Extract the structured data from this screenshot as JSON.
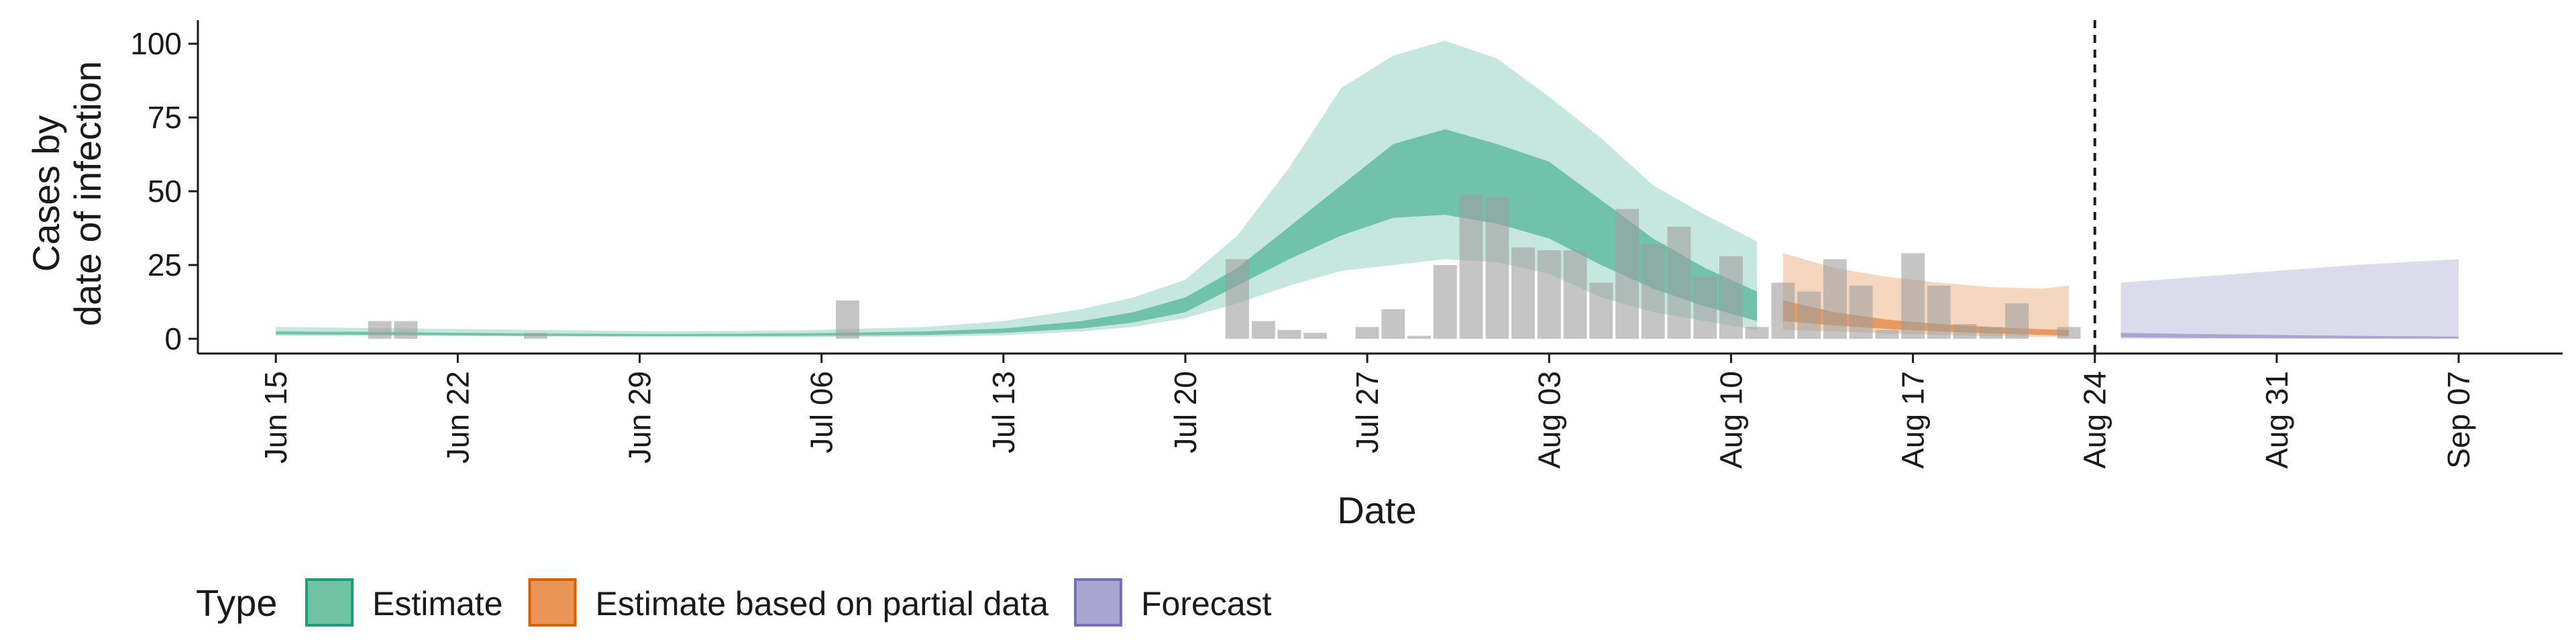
{
  "chart_data": {
    "type": "area",
    "xlabel": "Date",
    "ylabel_lines": [
      "Cases by",
      "date of infection"
    ],
    "ylim": [
      -5,
      108
    ],
    "yticks": [
      0,
      25,
      50,
      75,
      100
    ],
    "x_start": "2020-06-12",
    "x_end": "2020-09-11",
    "xticks": [
      {
        "date": "2020-06-15",
        "label": "Jun 15"
      },
      {
        "date": "2020-06-22",
        "label": "Jun 22"
      },
      {
        "date": "2020-06-29",
        "label": "Jun 29"
      },
      {
        "date": "2020-07-06",
        "label": "Jul 06"
      },
      {
        "date": "2020-07-13",
        "label": "Jul 13"
      },
      {
        "date": "2020-07-20",
        "label": "Jul 20"
      },
      {
        "date": "2020-07-27",
        "label": "Jul 27"
      },
      {
        "date": "2020-08-03",
        "label": "Aug 03"
      },
      {
        "date": "2020-08-10",
        "label": "Aug 10"
      },
      {
        "date": "2020-08-17",
        "label": "Aug 17"
      },
      {
        "date": "2020-08-24",
        "label": "Aug 24"
      },
      {
        "date": "2020-08-31",
        "label": "Aug 31"
      },
      {
        "date": "2020-09-07",
        "label": "Sep 07"
      }
    ],
    "vline_date": "2020-08-24",
    "observed_cases": [
      [
        "2020-06-19",
        6
      ],
      [
        "2020-06-20",
        6
      ],
      [
        "2020-06-25",
        2
      ],
      [
        "2020-07-07",
        13
      ],
      [
        "2020-07-22",
        27
      ],
      [
        "2020-07-23",
        6
      ],
      [
        "2020-07-24",
        3
      ],
      [
        "2020-07-25",
        2
      ],
      [
        "2020-07-27",
        4
      ],
      [
        "2020-07-28",
        10
      ],
      [
        "2020-07-29",
        1
      ],
      [
        "2020-07-30",
        25
      ],
      [
        "2020-07-31",
        49
      ],
      [
        "2020-08-01",
        48
      ],
      [
        "2020-08-02",
        31
      ],
      [
        "2020-08-03",
        30
      ],
      [
        "2020-08-04",
        30
      ],
      [
        "2020-08-05",
        19
      ],
      [
        "2020-08-06",
        44
      ],
      [
        "2020-08-07",
        32
      ],
      [
        "2020-08-08",
        38
      ],
      [
        "2020-08-09",
        21
      ],
      [
        "2020-08-10",
        28
      ],
      [
        "2020-08-11",
        4
      ],
      [
        "2020-08-12",
        19
      ],
      [
        "2020-08-13",
        16
      ],
      [
        "2020-08-14",
        27
      ],
      [
        "2020-08-15",
        18
      ],
      [
        "2020-08-16",
        3
      ],
      [
        "2020-08-17",
        29
      ],
      [
        "2020-08-18",
        18
      ],
      [
        "2020-08-19",
        5
      ],
      [
        "2020-08-20",
        4
      ],
      [
        "2020-08-21",
        12
      ],
      [
        "2020-08-23",
        4
      ]
    ],
    "series": [
      {
        "name": "Estimate",
        "color": "#1b9e77",
        "x": [
          "2020-06-15",
          "2020-06-20",
          "2020-06-25",
          "2020-06-30",
          "2020-07-05",
          "2020-07-10",
          "2020-07-13",
          "2020-07-16",
          "2020-07-18",
          "2020-07-20",
          "2020-07-22",
          "2020-07-24",
          "2020-07-26",
          "2020-07-28",
          "2020-07-30",
          "2020-08-01",
          "2020-08-03",
          "2020-08-05",
          "2020-08-07",
          "2020-08-09",
          "2020-08-11"
        ],
        "lower90": [
          1,
          1,
          0.8,
          0.6,
          0.5,
          0.7,
          1.2,
          2.5,
          4,
          7,
          12,
          18,
          23,
          25,
          27,
          26,
          22,
          14,
          9,
          6,
          3
        ],
        "upper90": [
          4,
          3.5,
          3,
          2.5,
          2.8,
          4,
          6,
          10,
          14,
          20,
          35,
          58,
          85,
          96,
          101,
          95,
          82,
          68,
          52,
          42,
          33
        ],
        "lower50": [
          1.5,
          1.3,
          1,
          0.9,
          1,
          1.3,
          2,
          3.5,
          5.5,
          9,
          18,
          27,
          35,
          41,
          42,
          39,
          34,
          25,
          17,
          11,
          6
        ],
        "upper50": [
          2.5,
          2.2,
          1.8,
          1.6,
          1.8,
          2.5,
          3.5,
          6,
          9,
          14,
          24,
          38,
          52,
          66,
          71,
          66,
          60,
          47,
          34,
          24,
          16
        ]
      },
      {
        "name": "Estimate based on partial data",
        "color": "#d95f02",
        "x": [
          "2020-08-12",
          "2020-08-14",
          "2020-08-16",
          "2020-08-18",
          "2020-08-20",
          "2020-08-22",
          "2020-08-23"
        ],
        "lower90": [
          3,
          2.5,
          1.8,
          1.3,
          0.9,
          0.6,
          0.5
        ],
        "upper90": [
          29,
          24,
          21,
          19,
          17.5,
          17,
          18
        ],
        "lower50": [
          6,
          4.5,
          3.3,
          2.5,
          1.8,
          1.3,
          1
        ],
        "upper50": [
          13,
          9,
          6.5,
          5,
          4,
          3.2,
          3
        ]
      },
      {
        "name": "Forecast",
        "color": "#7570b3",
        "x": [
          "2020-08-25",
          "2020-08-28",
          "2020-08-31",
          "2020-09-03",
          "2020-09-06",
          "2020-09-07"
        ],
        "lower90": [
          0,
          0,
          0,
          0,
          0,
          0
        ],
        "upper90": [
          19,
          21,
          23,
          25,
          26.5,
          27
        ],
        "lower50": [
          0.5,
          0.3,
          0.2,
          0.1,
          0.1,
          0.1
        ],
        "upper50": [
          2,
          1.6,
          1.3,
          1,
          0.8,
          0.7
        ]
      }
    ],
    "legend": {
      "title": "Type",
      "position": "bottom",
      "entries": [
        {
          "label": "Estimate",
          "fill": "#72c2a5",
          "stroke": "#1b9e77"
        },
        {
          "label": "Estimate based on partial data",
          "fill": "#e99558",
          "stroke": "#d95f02"
        },
        {
          "label": "Forecast",
          "fill": "#aaa6d2",
          "stroke": "#7570b3"
        }
      ]
    }
  }
}
